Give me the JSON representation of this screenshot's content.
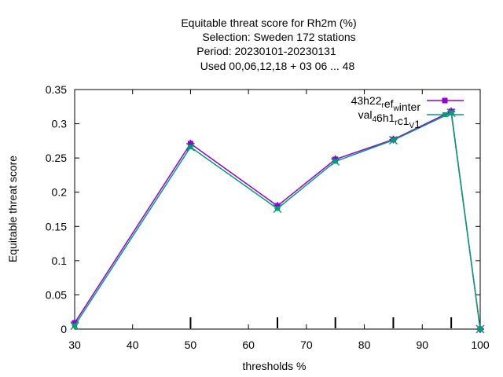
{
  "chart_data": {
    "type": "line",
    "title_lines": [
      "Equitable threat score  for Rh2m (%)",
      "Selection: Sweden    172 stations",
      "Period: 20230101-20230131",
      "Used  00,06,12,18  + 03 06 ... 48"
    ],
    "xlabel": "thresholds %",
    "ylabel": "Equitable threat score",
    "xlim": [
      30,
      100
    ],
    "ylim": [
      0,
      0.35
    ],
    "x_ticks": [
      "30",
      "40",
      "50",
      "60",
      "70",
      "80",
      "90",
      "100"
    ],
    "y_ticks": [
      "0",
      "0.05",
      "0.1",
      "0.15",
      "0.2",
      "0.25",
      "0.3",
      "0.35"
    ],
    "threshold_marks": [
      50,
      65,
      75,
      85,
      95
    ],
    "legend_position": "top-right",
    "grid": false,
    "series": [
      {
        "name": "43h22_ref_winter",
        "legend_parts": {
          "base": "43h22",
          "sub1": "r",
          "mid": "ef",
          "sub2": "w",
          "tail": "inter"
        },
        "color": "#9400d3",
        "x": [
          30,
          50,
          65,
          75,
          85,
          95,
          100
        ],
        "y": [
          0.009,
          0.271,
          0.18,
          0.248,
          0.277,
          0.318,
          0.0
        ]
      },
      {
        "name": "val_46h1_rc1_v1",
        "legend_parts": {
          "base": "val",
          "sub1": "4",
          "mid": "6h1",
          "sub2": "r",
          "tail": "c1",
          "sub3": "V",
          "end": "1"
        },
        "color": "#009e73",
        "x": [
          30,
          50,
          65,
          75,
          85,
          95,
          100
        ],
        "y": [
          0.005,
          0.266,
          0.176,
          0.245,
          0.276,
          0.316,
          0.0
        ]
      }
    ]
  }
}
